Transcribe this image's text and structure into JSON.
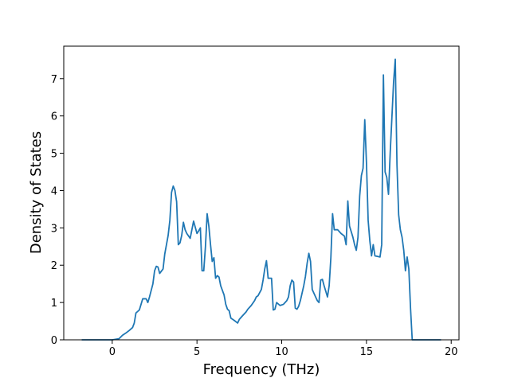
{
  "chart_data": {
    "type": "line",
    "x_label": "Frequency (THz)",
    "y_label": "Density of States",
    "xlim": [
      -2.86,
      20.46
    ],
    "ylim": [
      0,
      7.87
    ],
    "xticks": [
      0,
      5,
      10,
      15,
      20
    ],
    "yticks": [
      0,
      1,
      2,
      3,
      4,
      5,
      6,
      7
    ],
    "series": [
      {
        "color": "#1f77b4",
        "x": [
          -1.8,
          -0.5,
          0,
          0.4,
          0.6,
          0.8,
          1.0,
          1.2,
          1.3,
          1.4,
          1.6,
          1.7,
          1.8,
          2.0,
          2.1,
          2.2,
          2.4,
          2.5,
          2.6,
          2.7,
          2.8,
          3.0,
          3.1,
          3.2,
          3.3,
          3.4,
          3.5,
          3.6,
          3.7,
          3.8,
          3.9,
          4.0,
          4.1,
          4.2,
          4.3,
          4.4,
          4.6,
          4.8,
          5.0,
          5.1,
          5.2,
          5.3,
          5.4,
          5.5,
          5.6,
          5.7,
          5.8,
          5.9,
          6.0,
          6.1,
          6.2,
          6.3,
          6.4,
          6.6,
          6.7,
          6.8,
          6.9,
          7.0,
          7.2,
          7.4,
          7.5,
          7.7,
          7.9,
          8.0,
          8.2,
          8.4,
          8.5,
          8.6,
          8.8,
          8.9,
          9.0,
          9.1,
          9.2,
          9.4,
          9.5,
          9.6,
          9.7,
          9.9,
          10.1,
          10.3,
          10.4,
          10.5,
          10.6,
          10.7,
          10.8,
          10.9,
          11.0,
          11.1,
          11.3,
          11.4,
          11.5,
          11.6,
          11.7,
          11.8,
          12.0,
          12.1,
          12.2,
          12.3,
          12.4,
          12.5,
          12.6,
          12.7,
          12.8,
          12.9,
          13.0,
          13.1,
          13.3,
          13.5,
          13.7,
          13.8,
          13.9,
          14.0,
          14.2,
          14.3,
          14.4,
          14.5,
          14.6,
          14.7,
          14.8,
          14.9,
          15.0,
          15.1,
          15.2,
          15.3,
          15.4,
          15.5,
          15.8,
          15.9,
          16.0,
          16.1,
          16.2,
          16.3,
          16.4,
          16.5,
          16.6,
          16.7,
          16.8,
          16.9,
          17.0,
          17.1,
          17.2,
          17.3,
          17.4,
          17.5,
          17.6,
          17.7,
          18.0,
          19.4
        ],
        "values": [
          0,
          0,
          0,
          0.03,
          0.12,
          0.18,
          0.25,
          0.33,
          0.45,
          0.72,
          0.8,
          0.95,
          1.1,
          1.1,
          1.0,
          1.15,
          1.5,
          1.85,
          1.97,
          1.95,
          1.78,
          1.9,
          2.3,
          2.55,
          2.8,
          3.2,
          3.95,
          4.12,
          4.0,
          3.7,
          2.55,
          2.6,
          2.8,
          3.15,
          2.95,
          2.85,
          2.72,
          3.18,
          2.85,
          2.92,
          3.0,
          1.85,
          1.85,
          2.5,
          3.38,
          3.05,
          2.55,
          2.1,
          2.2,
          1.65,
          1.72,
          1.68,
          1.45,
          1.2,
          0.95,
          0.82,
          0.78,
          0.58,
          0.52,
          0.45,
          0.55,
          0.65,
          0.75,
          0.82,
          0.92,
          1.05,
          1.15,
          1.18,
          1.35,
          1.6,
          1.9,
          2.12,
          1.65,
          1.65,
          0.8,
          0.82,
          1.0,
          0.92,
          0.95,
          1.05,
          1.15,
          1.45,
          1.6,
          1.55,
          0.85,
          0.82,
          0.9,
          1.05,
          1.45,
          1.7,
          2.05,
          2.32,
          2.1,
          1.35,
          1.15,
          1.05,
          1.0,
          1.6,
          1.62,
          1.45,
          1.3,
          1.15,
          1.45,
          2.2,
          3.38,
          2.95,
          2.95,
          2.85,
          2.78,
          2.55,
          3.72,
          3.05,
          2.75,
          2.55,
          2.4,
          2.75,
          3.85,
          4.4,
          4.6,
          5.9,
          4.75,
          3.2,
          2.65,
          2.25,
          2.55,
          2.25,
          2.22,
          2.55,
          7.1,
          4.5,
          4.35,
          3.9,
          5.0,
          5.95,
          6.9,
          7.52,
          4.7,
          3.35,
          2.95,
          2.75,
          2.4,
          1.85,
          2.22,
          1.9,
          0.85,
          0,
          0,
          0
        ]
      }
    ]
  }
}
